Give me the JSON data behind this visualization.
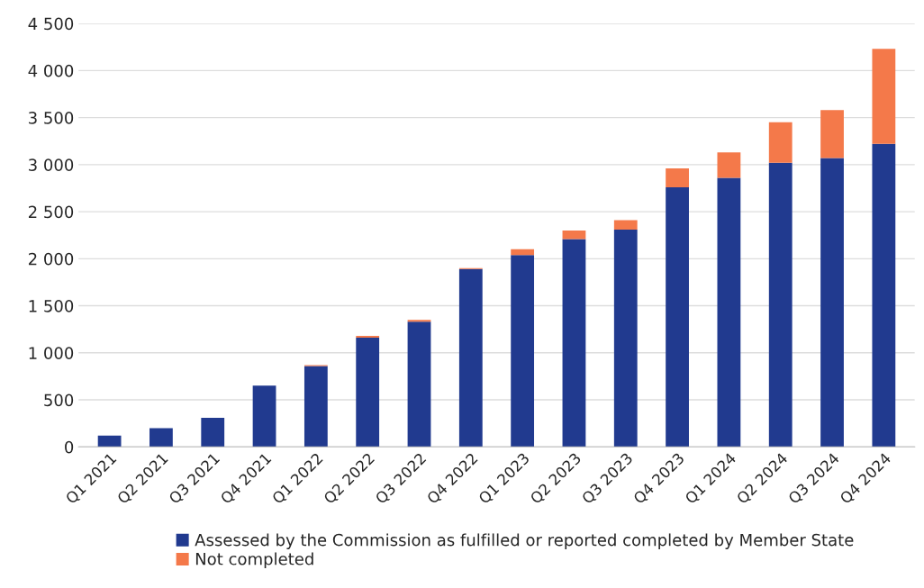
{
  "chart_data": {
    "type": "bar",
    "stacked": true,
    "categories": [
      "Q1 2021",
      "Q2 2021",
      "Q3 2021",
      "Q4 2021",
      "Q1 2022",
      "Q2 2022",
      "Q3 2022",
      "Q4 2022",
      "Q1 2023",
      "Q2 2023",
      "Q3 2023",
      "Q4 2023",
      "Q1 2024",
      "Q2 2024",
      "Q3 2024",
      "Q4 2024"
    ],
    "series": [
      {
        "name": "Assessed by the Commission as fulfilled or reported completed by Member State",
        "color": "#213a8f",
        "values": [
          120,
          200,
          310,
          650,
          860,
          1160,
          1330,
          1890,
          2040,
          2210,
          2310,
          2760,
          2860,
          3020,
          3070,
          3220
        ]
      },
      {
        "name": "Not completed",
        "color": "#f4794a",
        "values": [
          null,
          null,
          null,
          null,
          10,
          20,
          20,
          10,
          60,
          90,
          100,
          200,
          270,
          430,
          510,
          1010
        ]
      }
    ],
    "ylim": [
      0,
      4500
    ],
    "yticks": [
      0,
      {
        "value": 500,
        "label": "500"
      },
      {
        "value": 1000,
        "label": "1 000"
      },
      {
        "value": 1500,
        "label": "1 500"
      },
      {
        "value": 2000,
        "label": "2 000"
      },
      {
        "value": 2500,
        "label": "2 500"
      },
      {
        "value": 3000,
        "label": "3 000"
      },
      {
        "value": 3500,
        "label": "3 500"
      },
      {
        "value": 4000,
        "label": "4 000"
      },
      {
        "value": 4500,
        "label": "4 500"
      }
    ],
    "grid": "y",
    "legend": "bottom"
  }
}
